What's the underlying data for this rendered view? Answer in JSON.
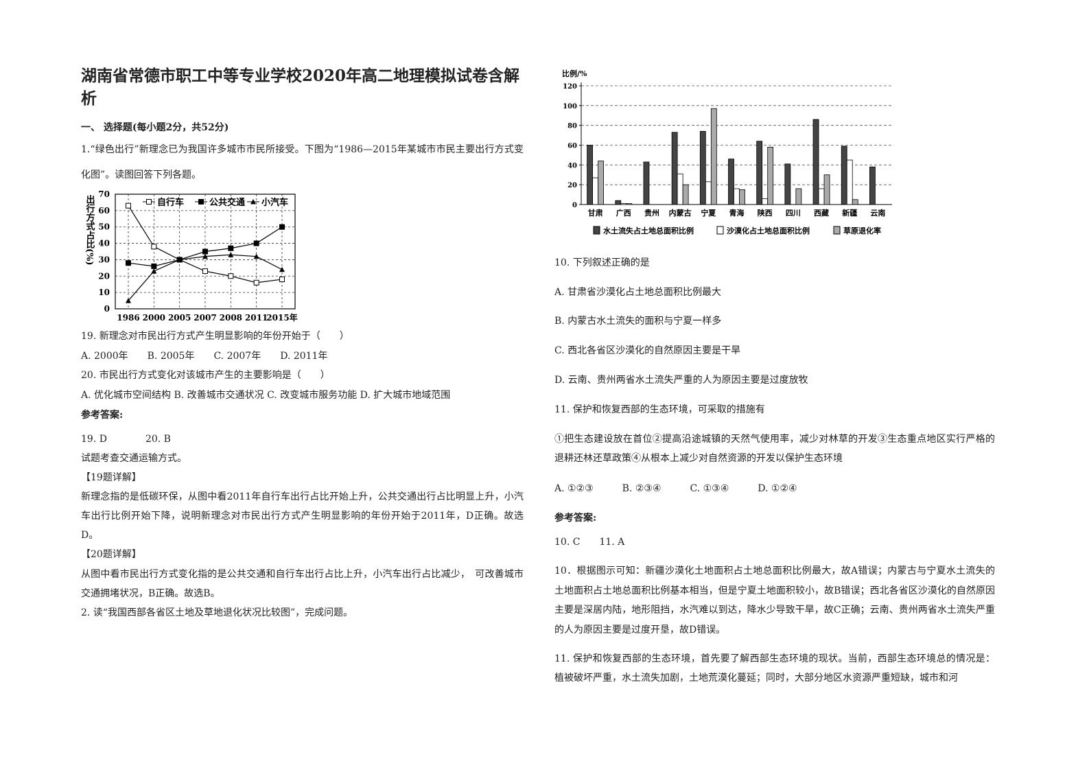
{
  "header": {
    "title": "湖南省常德市职工中等专业学校2020年高二地理模拟试卷含解析"
  },
  "left": {
    "section": "一、 选择题(每小题2分，共52分)",
    "intro": "1.“绿色出行”新理念已为我国许多城市市民所接受。下图为“1986—2015年某城市市民主要出行方式变化图”。读图回答下列各题。",
    "paragraphs": [
      "19. 新理念对市民出行方式产生明显影响的年份开始于（　　）",
      "A. 2000年　　B. 2005年　　C. 2007年　　D. 2011年",
      "20. 市民出行方式变化对该城市产生的主要影响是（　　）",
      "A. 优化城市空间结构 B. 改善城市交通状况 C. 改变城市服务功能 D. 扩大城市地域范围",
      "参考答案:",
      "19. D　　　　20. B",
      "试题考查交通运输方式。",
      "【19题详解】",
      "新理念指的是低碳环保，从图中看2011年自行车出行占比开始上升，公共交通出行占比明显上升，小汽车出行比例开始下降，说明新理念对市民出行方式产生明显影响的年份开始于2011年，D正确。故选D。",
      "【20题详解】",
      "从图中看市民出行方式变化指的是公共交通和自行车出行占比上升，小汽车出行占比减少，　可改善城市交通拥堵状况，B正确。故选B。",
      "2. 读“我国西部各省区土地及草地退化状况比较图”，完成问题。"
    ]
  },
  "right": {
    "paragraphs": [
      "10. 下列叙述正确的是",
      "A. 甘肃省沙漠化占土地总面积比例最大",
      "B. 内蒙古水土流失的面积与宁夏一样多",
      "C. 西北各省区沙漠化的自然原因主要是干旱",
      "D. 云南、贵州两省水土流失严重的人为原因主要是过度放牧",
      "11. 保护和恢复西部的生态环境，可采取的措施有",
      "①把生态建设放在首位②提高沿途城镇的天然气使用率，减少对林草的开发③生态重点地区实行严格的退耕还林还草政策④从根本上减少对自然资源的开发以保护生态环境",
      "A. ①②③　　　B. ②③④　　　C. ①③④　　　D. ①②④",
      "参考答案:",
      "10. C　　11. A",
      "10．根据图示可知：新疆沙漠化土地面积占土地总面积比例最大，故A错误；内蒙古与宁夏水土流失的土地面积占土地总面积比例基本相当，但是宁夏土地面积较小，故B错误；西北各省区沙漠化的自然原因主要是深居内陆，地形阻挡，水汽难以到达，降水少导致干旱，故C正确；云南、贵州两省水土流失严重的人为原因主要是过度开垦，故D错误。",
      "11. 保护和恢复西部的生态环境，首先要了解西部生态环境的现状。当前，西部生态环境总的情况是：植被破坏严重，水土流失加剧，土地荒漠化蔓延；同时，大部分地区水资源严重短缺，城市和河"
    ]
  },
  "chart_data": [
    {
      "type": "line",
      "y_label": "出行方式占比(%)",
      "categories": [
        "1986",
        "2000",
        "2005",
        "2007",
        "2008",
        "2011",
        "2015年"
      ],
      "ylim": [
        0,
        70
      ],
      "yticks": [
        0,
        10,
        20,
        30,
        40,
        50,
        60,
        70
      ],
      "grid": true,
      "legend": "top",
      "series": [
        {
          "name": "自行车",
          "color": "#000000",
          "marker": "hollow-square",
          "values": [
            63,
            38,
            30,
            23,
            20,
            16,
            18
          ]
        },
        {
          "name": "公共交通",
          "color": "#000000",
          "marker": "filled-square",
          "values": [
            28,
            26,
            30,
            35,
            37,
            40,
            50
          ]
        },
        {
          "name": "小汽车",
          "color": "#000000",
          "marker": "triangle",
          "values": [
            5,
            23,
            30,
            32,
            33,
            32,
            24
          ]
        }
      ]
    },
    {
      "type": "bar",
      "y_label": "比例/%",
      "categories": [
        "甘肃",
        "广西",
        "贵州",
        "内蒙古",
        "宁夏",
        "青海",
        "陕西",
        "四川",
        "西藏",
        "新疆",
        "云南"
      ],
      "ylim": [
        0,
        120
      ],
      "yticks": [
        0,
        20,
        40,
        60,
        80,
        100,
        120
      ],
      "grid": true,
      "legend": "bottom",
      "series": [
        {
          "name": "水土流失占土地总面积比例",
          "color": "#444444",
          "values": [
            60,
            4,
            43,
            73,
            74,
            46,
            64,
            41,
            86,
            59,
            38
          ]
        },
        {
          "name": "沙漠化占土地总面积比例",
          "color": "#ffffff",
          "values": [
            27,
            1,
            0,
            31,
            23,
            16,
            6,
            0,
            16,
            45,
            0
          ]
        },
        {
          "name": "草原退化率",
          "color": "#aaaaaa",
          "values": [
            44,
            1,
            0,
            20,
            97,
            15,
            58,
            16,
            30,
            5,
            0
          ]
        }
      ]
    }
  ]
}
